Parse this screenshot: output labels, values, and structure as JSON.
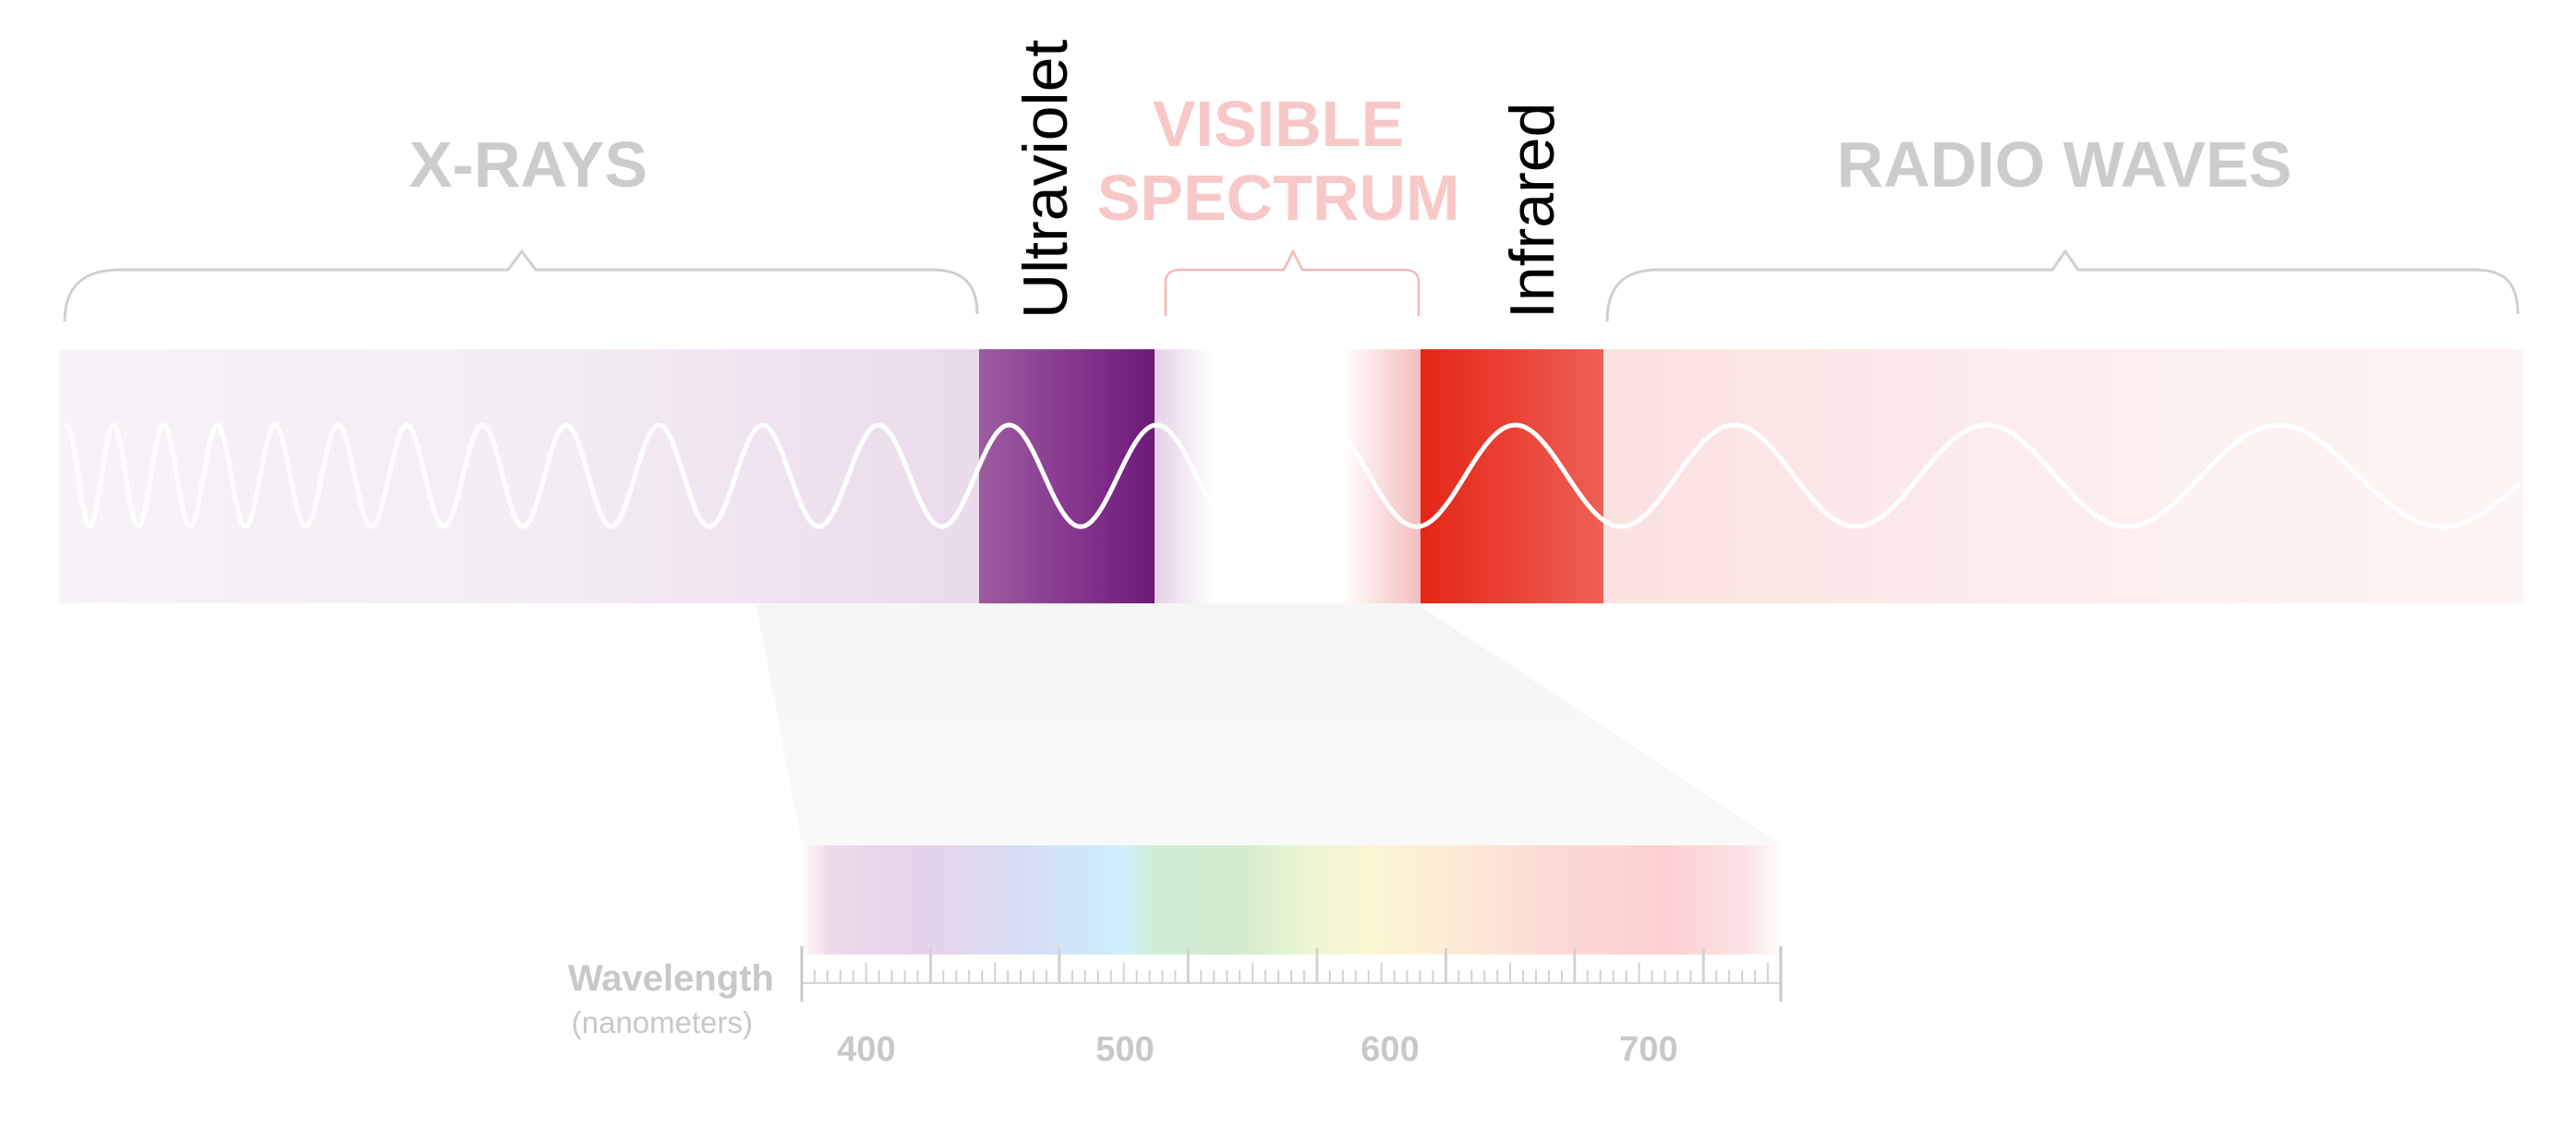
{
  "labels": {
    "xrays": "X-RAYS",
    "ultraviolet": "Ultraviolet",
    "visible_line1": "VISIBLE",
    "visible_line2": "SPECTRUM",
    "infrared": "Infrared",
    "radio": "RADIO WAVES"
  },
  "scale": {
    "title": "Wavelength",
    "unit": "(nanometers)",
    "ticks": [
      "400",
      "500",
      "600",
      "700"
    ]
  },
  "colors": {
    "xrays_label": "#cccccc",
    "visible_label": "#f8c8c8",
    "radio_label": "#cccccc",
    "ultraviolet_band": "#7b2a86",
    "infrared_band": "#e42d21",
    "wave": "#ffffff",
    "scale_text": "#c8c8c8"
  }
}
